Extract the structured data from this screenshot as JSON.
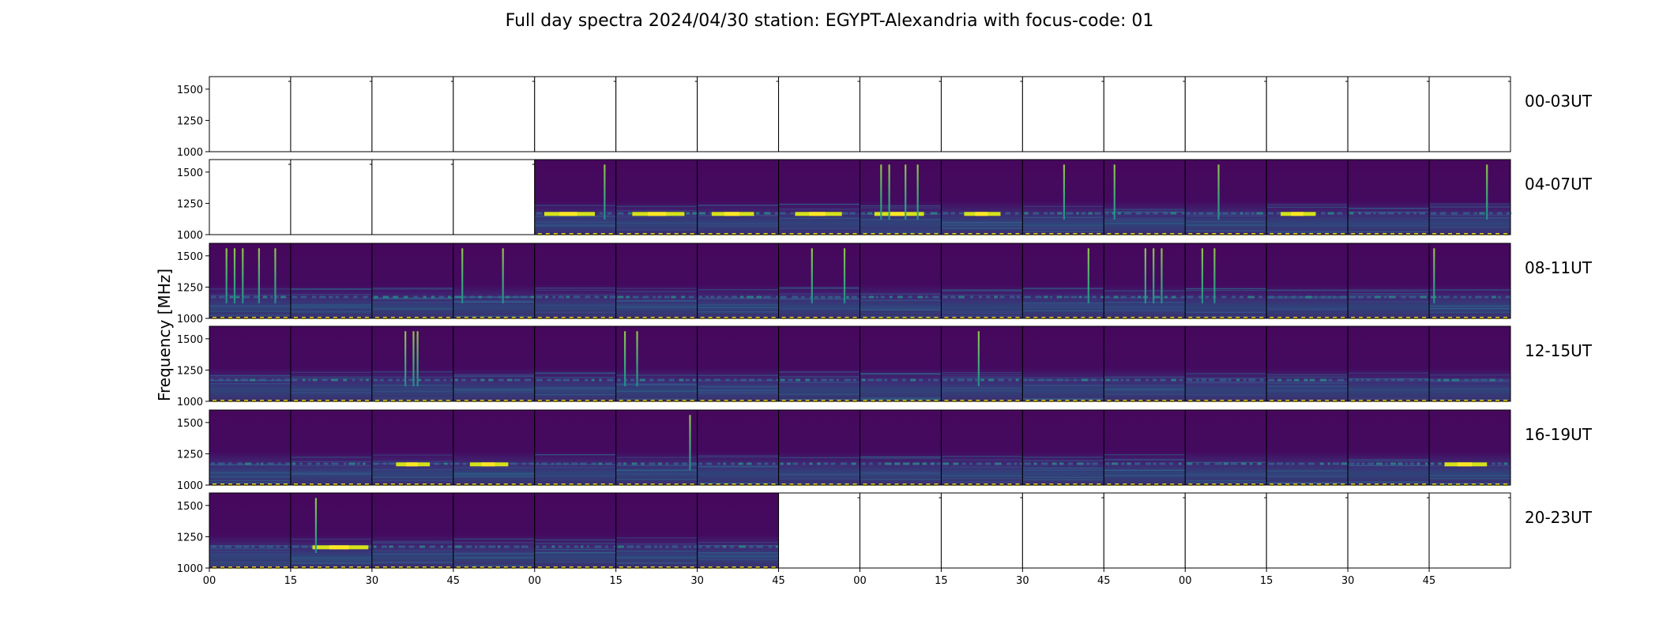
{
  "chart_data": {
    "type": "heatmap",
    "title": "Full day spectra 2024/04/30 station: EGYPT-Alexandria with focus-code: 01",
    "ylabel": "Frequency [MHz]",
    "xlabel": "",
    "row_labels": [
      "00-03UT",
      "04-07UT",
      "08-11UT",
      "12-15UT",
      "16-19UT",
      "20-23UT"
    ],
    "y_ticks": [
      "1500",
      "1250",
      "1000"
    ],
    "ylim": [
      1000,
      1600
    ],
    "x_ticks": [
      "00",
      "15",
      "30",
      "45",
      "00",
      "15",
      "30",
      "45",
      "00",
      "15",
      "30",
      "45",
      "00",
      "15",
      "30",
      "45"
    ],
    "panels_per_row": 16,
    "panel_minutes": 15,
    "colormap": "viridis",
    "colors": {
      "low": "#440154",
      "mid": "#21918c",
      "high": "#fde725"
    },
    "data_panels": [
      {
        "row": "00-03UT",
        "from": null,
        "to": null
      },
      {
        "row": "04-07UT",
        "from": 4,
        "to": 15
      },
      {
        "row": "08-11UT",
        "from": 0,
        "to": 15
      },
      {
        "row": "12-15UT",
        "from": 0,
        "to": 15
      },
      {
        "row": "16-19UT",
        "from": 0,
        "to": 15
      },
      {
        "row": "20-23UT",
        "from": 0,
        "to": 6
      }
    ],
    "features": [
      {
        "row": 1,
        "panel": 4,
        "strong_band_mhz": 1175,
        "bursts": [
          0.85
        ]
      },
      {
        "row": 1,
        "panel": 5,
        "strong_band_mhz": 1175,
        "bursts": []
      },
      {
        "row": 1,
        "panel": 6,
        "strong_band_mhz": 1175,
        "bursts": []
      },
      {
        "row": 1,
        "panel": 7,
        "strong_band_mhz": 1175,
        "bursts": []
      },
      {
        "row": 1,
        "panel": 8,
        "strong_band_mhz": 1175,
        "bursts": [
          0.25,
          0.35,
          0.55,
          0.7
        ]
      },
      {
        "row": 1,
        "panel": 9,
        "strong_band_mhz": 1175,
        "bursts": []
      },
      {
        "row": 1,
        "panel": 10,
        "strong_band_mhz": 0,
        "bursts": [
          0.5
        ]
      },
      {
        "row": 1,
        "panel": 11,
        "strong_band_mhz": 0,
        "bursts": [
          0.12
        ]
      },
      {
        "row": 1,
        "panel": 12,
        "strong_band_mhz": 0,
        "bursts": [
          0.4
        ]
      },
      {
        "row": 1,
        "panel": 13,
        "strong_band_mhz": 1175,
        "bursts": []
      },
      {
        "row": 1,
        "panel": 15,
        "strong_band_mhz": 0,
        "bursts": [
          0.7
        ]
      },
      {
        "row": 2,
        "panel": 0,
        "strong_band_mhz": 0,
        "bursts": [
          0.2,
          0.3,
          0.4,
          0.6,
          0.8
        ]
      },
      {
        "row": 2,
        "panel": 3,
        "strong_band_mhz": 0,
        "bursts": [
          0.1,
          0.6
        ]
      },
      {
        "row": 2,
        "panel": 7,
        "strong_band_mhz": 0,
        "bursts": [
          0.4,
          0.8
        ]
      },
      {
        "row": 2,
        "panel": 9,
        "strong_band_mhz": 0,
        "bursts": []
      },
      {
        "row": 2,
        "panel": 10,
        "strong_band_mhz": 0,
        "bursts": [
          0.8
        ]
      },
      {
        "row": 2,
        "panel": 11,
        "strong_band_mhz": 0,
        "bursts": [
          0.5,
          0.6,
          0.7
        ]
      },
      {
        "row": 2,
        "panel": 12,
        "strong_band_mhz": 0,
        "bursts": [
          0.2,
          0.35
        ]
      },
      {
        "row": 2,
        "panel": 15,
        "strong_band_mhz": 0,
        "bursts": [
          0.05
        ]
      },
      {
        "row": 3,
        "panel": 2,
        "strong_band_mhz": 0,
        "bursts": [
          0.4,
          0.5,
          0.55
        ]
      },
      {
        "row": 3,
        "panel": 5,
        "strong_band_mhz": 0,
        "bursts": [
          0.1,
          0.25
        ]
      },
      {
        "row": 3,
        "panel": 9,
        "strong_band_mhz": 0,
        "bursts": [
          0.45
        ]
      },
      {
        "row": 4,
        "panel": 2,
        "strong_band_mhz": 1175,
        "bursts": []
      },
      {
        "row": 4,
        "panel": 3,
        "strong_band_mhz": 1175,
        "bursts": []
      },
      {
        "row": 4,
        "panel": 5,
        "strong_band_mhz": 0,
        "bursts": [
          0.9
        ]
      },
      {
        "row": 4,
        "panel": 15,
        "strong_band_mhz": 1175,
        "bursts": []
      },
      {
        "row": 5,
        "panel": 1,
        "strong_band_mhz": 1175,
        "bursts": [
          0.3
        ]
      }
    ]
  }
}
